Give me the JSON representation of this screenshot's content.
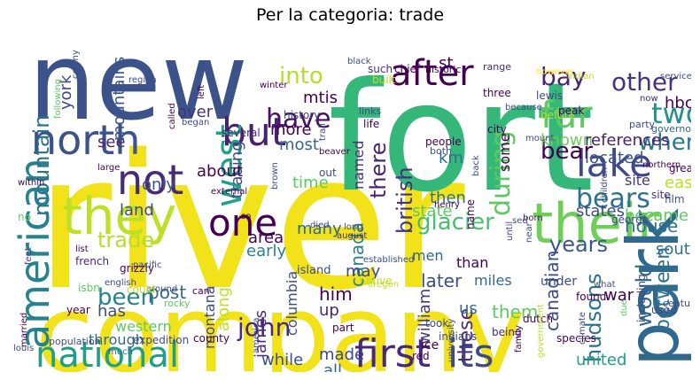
{
  "title": "Per la categoria: trade",
  "words": [
    {
      "text": "river",
      "color": "#f2e21a"
    },
    {
      "text": "company",
      "color": "#f2e21a"
    },
    {
      "text": "fort",
      "color": "#35b779"
    },
    {
      "text": "new",
      "color": "#3b528b"
    },
    {
      "text": "their",
      "color": "#6ece58"
    },
    {
      "text": "they",
      "color": "#bddf26"
    },
    {
      "text": "park",
      "color": "#31688e"
    },
    {
      "text": "national",
      "color": "#1f9e89"
    },
    {
      "text": "first",
      "color": "#482878"
    },
    {
      "text": "its",
      "color": "#3e4a89"
    },
    {
      "text": "north",
      "color": "#3b528b"
    },
    {
      "text": "american",
      "color": "#26828e"
    },
    {
      "text": "after",
      "color": "#440154"
    },
    {
      "text": "but",
      "color": "#482173"
    },
    {
      "text": "not",
      "color": "#482878"
    },
    {
      "text": "west",
      "color": "#1fa187"
    },
    {
      "text": "lake",
      "color": "#3e4a89"
    },
    {
      "text": "one",
      "color": "#440154"
    },
    {
      "text": "fur",
      "color": "#5ec962"
    },
    {
      "text": "mountain",
      "color": "#2c728e"
    },
    {
      "text": "into",
      "color": "#b5de2b"
    },
    {
      "text": "have",
      "color": "#471063"
    },
    {
      "text": "bay",
      "color": "#482475"
    },
    {
      "text": "other",
      "color": "#46327e"
    },
    {
      "text": "two",
      "color": "#21918c"
    },
    {
      "text": "bear",
      "color": "#440154"
    },
    {
      "text": "british",
      "color": "#46327e"
    },
    {
      "text": "when",
      "color": "#2a788e"
    },
    {
      "text": "during",
      "color": "#5ec962"
    },
    {
      "text": "canada",
      "color": "#26828e"
    },
    {
      "text": "glacier",
      "color": "#46c06f"
    },
    {
      "text": "bears",
      "color": "#2c728e"
    },
    {
      "text": "years",
      "color": "#38588c"
    },
    {
      "text": "trade",
      "color": "#b5de2b"
    },
    {
      "text": "john",
      "color": "#482878"
    },
    {
      "text": "between",
      "color": "#2d708e"
    },
    {
      "text": "would",
      "color": "#31688e"
    },
    {
      "text": "been",
      "color": "#26828e"
    },
    {
      "text": "york",
      "color": "#3e4a89"
    },
    {
      "text": "there",
      "color": "#482475"
    },
    {
      "text": "him",
      "color": "#440154"
    },
    {
      "text": "hudsons",
      "color": "#2c728e"
    },
    {
      "text": "canadian",
      "color": "#3e4a89"
    },
    {
      "text": "these",
      "color": "#472d7b"
    },
    {
      "text": "them",
      "color": "#5ec962"
    },
    {
      "text": "william",
      "color": "#443983"
    },
    {
      "text": "columbia",
      "color": "#3e4a89"
    },
    {
      "text": "post",
      "color": "#31688e"
    },
    {
      "text": "made",
      "color": "#3e4a89"
    },
    {
      "text": "all",
      "color": "#31688e"
    },
    {
      "text": "while",
      "color": "#3b528b"
    },
    {
      "text": "united",
      "color": "#1f9e89"
    },
    {
      "text": "up",
      "color": "#482878"
    },
    {
      "text": "later",
      "color": "#3e4a89"
    },
    {
      "text": "state",
      "color": "#5ec962"
    },
    {
      "text": "states",
      "color": "#3e4a89"
    },
    {
      "text": "house",
      "color": "#2c728e"
    },
    {
      "text": "became",
      "color": "#5ec962"
    },
    {
      "text": "east",
      "color": "#bddf26"
    },
    {
      "text": "site",
      "color": "#453781"
    },
    {
      "text": "located",
      "color": "#3b528b"
    },
    {
      "text": "known",
      "color": "#6ece58"
    },
    {
      "text": "references",
      "color": "#481f70"
    },
    {
      "text": "hbc",
      "color": "#440154"
    },
    {
      "text": "south",
      "color": "#2d708e"
    },
    {
      "text": "war",
      "color": "#440154"
    },
    {
      "text": "area",
      "color": "#440154"
    },
    {
      "text": "early",
      "color": "#26828e"
    },
    {
      "text": "land",
      "color": "#3e4a89"
    },
    {
      "text": "many",
      "color": "#31688e"
    },
    {
      "text": "time",
      "color": "#5ec962"
    },
    {
      "text": "trading",
      "color": "#3e4a89"
    },
    {
      "text": "named",
      "color": "#46327e"
    },
    {
      "text": "most",
      "color": "#31688e"
    },
    {
      "text": "more",
      "color": "#440154"
    },
    {
      "text": "mtis",
      "color": "#440154"
    },
    {
      "text": "over",
      "color": "#46327e"
    },
    {
      "text": "about",
      "color": "#440154"
    },
    {
      "text": "only",
      "color": "#38588c"
    },
    {
      "text": "see",
      "color": "#482878"
    },
    {
      "text": "mountains",
      "color": "#3b528b"
    },
    {
      "text": "has",
      "color": "#3e4a89"
    },
    {
      "text": "western",
      "color": "#5ec962"
    },
    {
      "text": "through",
      "color": "#31688e"
    },
    {
      "text": "montana",
      "color": "#3e4a89"
    },
    {
      "text": "along",
      "color": "#bddf26"
    },
    {
      "text": "james",
      "color": "#472d7b"
    },
    {
      "text": "may",
      "color": "#3e4a89"
    },
    {
      "text": "miles",
      "color": "#31688e"
    },
    {
      "text": "than",
      "color": "#440154"
    },
    {
      "text": "men",
      "color": "#31688e"
    },
    {
      "text": "km",
      "color": "#2c728e"
    },
    {
      "text": "then",
      "color": "#2d708e"
    },
    {
      "text": "some",
      "color": "#440154"
    },
    {
      "text": "us",
      "color": "#31688e"
    },
    {
      "text": "history",
      "color": "#414487"
    },
    {
      "text": "several",
      "color": "#482878"
    },
    {
      "text": "island",
      "color": "#3e4a89"
    },
    {
      "text": "grizzly",
      "color": "#440154"
    },
    {
      "text": "french",
      "color": "#482878"
    },
    {
      "text": "st",
      "color": "#440154"
    },
    {
      "text": "built",
      "color": "#bddf26"
    },
    {
      "text": "such",
      "color": "#472d7b"
    },
    {
      "text": "chief",
      "color": "#440154"
    },
    {
      "text": "historic",
      "color": "#440154"
    },
    {
      "text": "range",
      "color": "#482878"
    },
    {
      "text": "three",
      "color": "#440154"
    },
    {
      "text": "life",
      "color": "#440154"
    },
    {
      "text": "links",
      "color": "#3e4a89"
    },
    {
      "text": "both",
      "color": "#3b528b"
    },
    {
      "text": "people",
      "color": "#440154"
    },
    {
      "text": "city",
      "color": "#440154"
    },
    {
      "text": "before",
      "color": "#b5de2b"
    },
    {
      "text": "lewis",
      "color": "#3e4a89"
    },
    {
      "text": "peak",
      "color": "#440154"
    },
    {
      "text": "however",
      "color": "#fde725"
    },
    {
      "text": "indian",
      "color": "#c2df23"
    },
    {
      "text": "service",
      "color": "#3e4a89"
    },
    {
      "text": "now",
      "color": "#482878"
    },
    {
      "text": "site",
      "color": "#453781"
    },
    {
      "text": "film",
      "color": "#3b528b"
    },
    {
      "text": "party",
      "color": "#3e4a89"
    },
    {
      "text": "governor",
      "color": "#31688e"
    },
    {
      "text": "great",
      "color": "#440154"
    },
    {
      "text": "northern",
      "color": "#440154"
    },
    {
      "text": "children",
      "color": "#3e4a89"
    },
    {
      "text": "george",
      "color": "#3e4a89"
    },
    {
      "text": "name",
      "color": "#440154"
    },
    {
      "text": "born",
      "color": "#471063"
    },
    {
      "text": "henry",
      "color": "#440154"
    },
    {
      "text": "long",
      "color": "#3e4a89"
    },
    {
      "text": "died",
      "color": "#3e4a89"
    },
    {
      "text": "established",
      "color": "#3e4a89"
    },
    {
      "text": "native",
      "color": "#bddf26"
    },
    {
      "text": "august",
      "color": "#482878"
    },
    {
      "text": "oregon",
      "color": "#bddf26"
    },
    {
      "text": "took",
      "color": "#3e4a89"
    },
    {
      "text": "being",
      "color": "#482878"
    },
    {
      "text": "ice",
      "color": "#440154"
    },
    {
      "text": "part",
      "color": "#440154"
    },
    {
      "text": "red",
      "color": "#440154"
    },
    {
      "text": "indians",
      "color": "#3e4a89"
    },
    {
      "text": "university",
      "color": "#3e4a89"
    },
    {
      "text": "dutch",
      "color": "#440154"
    },
    {
      "text": "county",
      "color": "#440154"
    },
    {
      "text": "expedition",
      "color": "#3e4a89"
    },
    {
      "text": "population",
      "color": "#3e4a89"
    },
    {
      "text": "america",
      "color": "#3e4a89"
    },
    {
      "text": "external",
      "color": "#440154"
    },
    {
      "text": "around",
      "color": "#3e4a89"
    },
    {
      "text": "rocky",
      "color": "#5ec962"
    },
    {
      "text": "much",
      "color": "#31688e"
    },
    {
      "text": "married",
      "color": "#440154"
    },
    {
      "text": "louis",
      "color": "#3e4a89"
    },
    {
      "text": "english",
      "color": "#3e4a89"
    },
    {
      "text": "isbn",
      "color": "#5ec962"
    },
    {
      "text": "feet",
      "color": "#3e4a89"
    },
    {
      "text": "year",
      "color": "#440154"
    },
    {
      "text": "pacific",
      "color": "#3e4a89"
    },
    {
      "text": "list",
      "color": "#440154"
    },
    {
      "text": "large",
      "color": "#440154"
    },
    {
      "text": "within",
      "color": "#440154"
    },
    {
      "text": "following",
      "color": "#5ec962"
    },
    {
      "text": "colony",
      "color": "#3e4a89"
    },
    {
      "text": "region",
      "color": "#3e4a89"
    },
    {
      "text": "began",
      "color": "#3e4a89"
    },
    {
      "text": "winter",
      "color": "#440154"
    },
    {
      "text": "called",
      "color": "#440154"
    },
    {
      "text": "left",
      "color": "#440154"
    },
    {
      "text": "beaver",
      "color": "#440154"
    },
    {
      "text": "out",
      "color": "#3e4a89"
    },
    {
      "text": "trail",
      "color": "#3e4a89"
    },
    {
      "text": "brown",
      "color": "#3e4a89"
    },
    {
      "text": "so",
      "color": "#440154"
    },
    {
      "text": "no",
      "color": "#5ec962"
    },
    {
      "text": "can",
      "color": "#440154"
    },
    {
      "text": "could",
      "color": "#bddf26"
    },
    {
      "text": "black",
      "color": "#3e4a89"
    },
    {
      "text": "because",
      "color": "#3e4a89"
    },
    {
      "text": "mount",
      "color": "#3e4a89"
    },
    {
      "text": "including",
      "color": "#3e4a89"
    },
    {
      "text": "due",
      "color": "#5ec962"
    },
    {
      "text": "found",
      "color": "#440154"
    },
    {
      "text": "century",
      "color": "#3e4a89"
    },
    {
      "text": "northwest",
      "color": "#3e4a89"
    },
    {
      "text": "species",
      "color": "#440154"
    },
    {
      "text": "climate",
      "color": "#3e4a89"
    },
    {
      "text": "family",
      "color": "#440154"
    },
    {
      "text": "what",
      "color": "#3e4a89"
    },
    {
      "text": "under",
      "color": "#3e4a89"
    },
    {
      "text": "used",
      "color": "#3e4a89"
    },
    {
      "text": "back",
      "color": "#3e4a89"
    },
    {
      "text": "until",
      "color": "#3e4a89"
    },
    {
      "text": "near",
      "color": "#3e4a89"
    },
    {
      "text": "government",
      "color": "#bddf26"
    },
    {
      "text": "sed",
      "color": "#3e4a89"
    }
  ]
}
